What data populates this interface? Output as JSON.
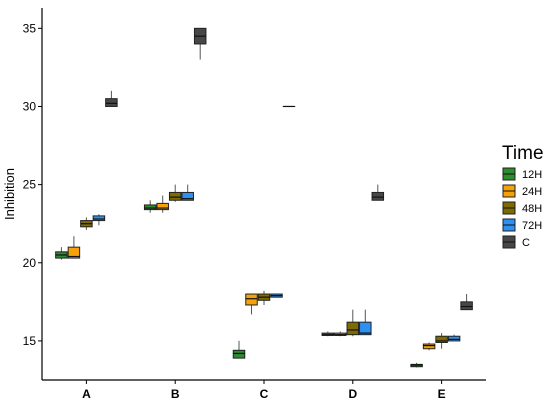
{
  "chart_data": {
    "type": "boxplot",
    "title": "",
    "xlabel": "",
    "ylabel": "Inhibition",
    "ylim": [
      12.5,
      36.3
    ],
    "y_ticks": [
      15,
      20,
      25,
      30,
      35
    ],
    "grid": false,
    "legend": {
      "title": "Time",
      "position": "right"
    },
    "categories": [
      "A",
      "B",
      "C",
      "D",
      "E"
    ],
    "series": [
      {
        "name": "12H",
        "color": "#2e8b2e",
        "boxes": [
          {
            "category": "A",
            "min": 20.2,
            "q1": 20.3,
            "median": 20.5,
            "q3": 20.7,
            "max": 21.0
          },
          {
            "category": "B",
            "min": 23.2,
            "q1": 23.4,
            "median": 23.5,
            "q3": 23.7,
            "max": 24.0
          },
          {
            "category": "C",
            "min": 13.9,
            "q1": 13.9,
            "median": 14.2,
            "q3": 14.4,
            "max": 15.0
          },
          {
            "category": "D",
            "min": 15.3,
            "q1": 15.35,
            "median": 15.4,
            "q3": 15.5,
            "max": 15.6
          },
          {
            "category": "E",
            "min": 13.3,
            "q1": 13.35,
            "median": 13.45,
            "q3": 13.5,
            "max": 13.6
          }
        ]
      },
      {
        "name": "24H",
        "color": "#f5a20a",
        "boxes": [
          {
            "category": "A",
            "min": 20.3,
            "q1": 20.3,
            "median": 20.4,
            "q3": 21.0,
            "max": 21.7
          },
          {
            "category": "B",
            "min": 23.2,
            "q1": 23.4,
            "median": 23.5,
            "q3": 23.8,
            "max": 24.3
          },
          {
            "category": "C",
            "min": 16.7,
            "q1": 17.3,
            "median": 17.7,
            "q3": 18.0,
            "max": 18.0
          },
          {
            "category": "D",
            "min": 15.3,
            "q1": 15.35,
            "median": 15.4,
            "q3": 15.5,
            "max": 15.6
          },
          {
            "category": "E",
            "min": 14.4,
            "q1": 14.5,
            "median": 14.7,
            "q3": 14.8,
            "max": 14.9
          }
        ]
      },
      {
        "name": "48H",
        "color": "#7f6a00",
        "boxes": [
          {
            "category": "A",
            "min": 22.1,
            "q1": 22.3,
            "median": 22.5,
            "q3": 22.7,
            "max": 22.9
          },
          {
            "category": "B",
            "min": 23.9,
            "q1": 24.0,
            "median": 24.2,
            "q3": 24.5,
            "max": 25.0
          },
          {
            "category": "C",
            "min": 17.3,
            "q1": 17.6,
            "median": 17.8,
            "q3": 18.0,
            "max": 18.2
          },
          {
            "category": "D",
            "min": 15.3,
            "q1": 15.4,
            "median": 15.7,
            "q3": 16.2,
            "max": 17.0
          },
          {
            "category": "E",
            "min": 14.5,
            "q1": 14.9,
            "median": 15.0,
            "q3": 15.3,
            "max": 15.5
          }
        ]
      },
      {
        "name": "72H",
        "color": "#2e90f0",
        "boxes": [
          {
            "category": "A",
            "min": 22.4,
            "q1": 22.7,
            "median": 22.8,
            "q3": 23.0,
            "max": 23.1
          },
          {
            "category": "B",
            "min": 24.0,
            "q1": 24.0,
            "median": 24.1,
            "q3": 24.5,
            "max": 25.0
          },
          {
            "category": "C",
            "min": 17.8,
            "q1": 17.8,
            "median": 17.9,
            "q3": 18.0,
            "max": 18.0
          },
          {
            "category": "D",
            "min": 15.4,
            "q1": 15.4,
            "median": 15.5,
            "q3": 16.2,
            "max": 17.0
          },
          {
            "category": "E",
            "min": 15.0,
            "q1": 15.0,
            "median": 15.1,
            "q3": 15.3,
            "max": 15.4
          }
        ]
      },
      {
        "name": "C",
        "color": "#474747",
        "boxes": [
          {
            "category": "A",
            "min": 30.0,
            "q1": 30.0,
            "median": 30.2,
            "q3": 30.5,
            "max": 31.0
          },
          {
            "category": "B",
            "min": 33.0,
            "q1": 34.0,
            "median": 34.5,
            "q3": 35.0,
            "max": 35.0
          },
          {
            "category": "C",
            "min": 30.0,
            "q1": 30.0,
            "median": 30.0,
            "q3": 30.0,
            "max": 30.0
          },
          {
            "category": "D",
            "min": 24.0,
            "q1": 24.0,
            "median": 24.2,
            "q3": 24.5,
            "max": 25.0
          },
          {
            "category": "E",
            "min": 17.0,
            "q1": 17.0,
            "median": 17.2,
            "q3": 17.5,
            "max": 18.0
          }
        ]
      }
    ]
  }
}
